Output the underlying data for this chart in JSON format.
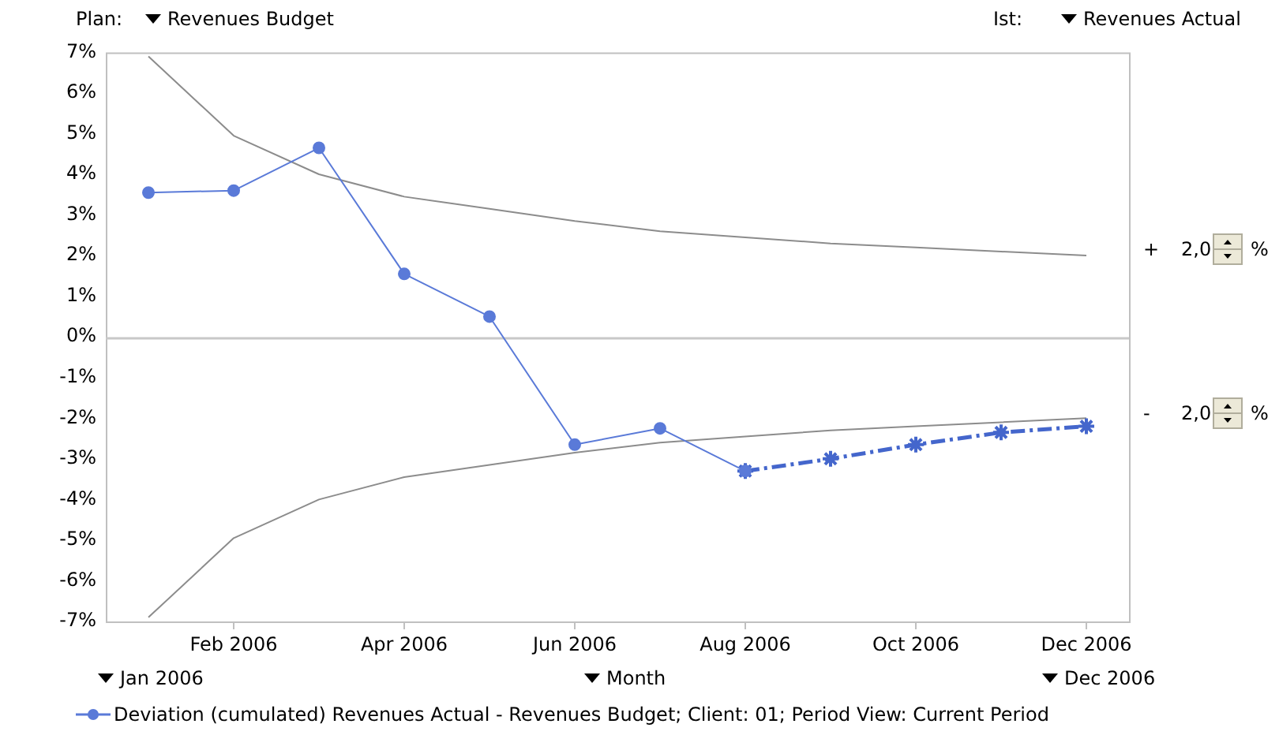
{
  "chart_data": {
    "type": "line",
    "categories": [
      null,
      "Feb 2006",
      null,
      "Apr 2006",
      null,
      "Jun 2006",
      null,
      "Aug 2006",
      null,
      "Oct 2006",
      null,
      "Dec 2006"
    ],
    "series": [
      {
        "name": "Deviation (cumulated) Revenues Actual - Revenues Budget; Client: 01; Period View: Current Period",
        "color": "#5a7ad8",
        "marker": "circle",
        "line_style": "solid",
        "values": [
          3.55,
          3.6,
          4.65,
          1.55,
          0.5,
          -2.65,
          -2.25,
          -3.3,
          null,
          null,
          null,
          null
        ]
      },
      {
        "color": "#4466cc",
        "marker": "cross",
        "line_style": "dashed",
        "values": [
          null,
          null,
          null,
          null,
          null,
          null,
          null,
          -3.3,
          -3.0,
          -2.65,
          -2.35,
          -2.2
        ]
      },
      {
        "color": "#8c8c8c",
        "marker": "none",
        "line_style": "solid",
        "values": [
          6.9,
          4.95,
          4.0,
          3.45,
          3.15,
          2.85,
          2.6,
          2.45,
          2.3,
          2.2,
          2.1,
          2.0
        ]
      },
      {
        "color": "#8c8c8c",
        "marker": "none",
        "line_style": "solid",
        "values": [
          -6.9,
          -4.95,
          -4.0,
          -3.45,
          -3.15,
          -2.85,
          -2.6,
          -2.45,
          -2.3,
          -2.2,
          -2.1,
          -2.0
        ]
      }
    ],
    "ylim": [
      -7,
      7
    ],
    "yticks": [
      {
        "value": -7,
        "label": "-7%"
      },
      {
        "value": -6,
        "label": "-6%"
      },
      {
        "value": -5,
        "label": "-5%"
      },
      {
        "value": -4,
        "label": "-4%"
      },
      {
        "value": -3,
        "label": "-3%"
      },
      {
        "value": -2,
        "label": "-2%"
      },
      {
        "value": -1,
        "label": "-1%"
      },
      {
        "value": 0,
        "label": "0%"
      },
      {
        "value": 1,
        "label": "1%"
      },
      {
        "value": 2,
        "label": "2%"
      },
      {
        "value": 3,
        "label": "3%"
      },
      {
        "value": 4,
        "label": "4%"
      },
      {
        "value": 5,
        "label": "5%"
      },
      {
        "value": 6,
        "label": "6%"
      },
      {
        "value": 7,
        "label": "7%"
      }
    ],
    "ref_lines": [
      {
        "axis": "y",
        "value": 0,
        "color": "#c8c8c8"
      }
    ],
    "grid": false,
    "legend": "bottom",
    "annotations": [
      "Plan:",
      "Revenues Budget",
      "Ist:",
      "Revenues Actual",
      "Jan 2006",
      "Month",
      "Dec 2006",
      "+",
      "2,0",
      "%",
      "-",
      "2,0",
      "%"
    ]
  }
}
